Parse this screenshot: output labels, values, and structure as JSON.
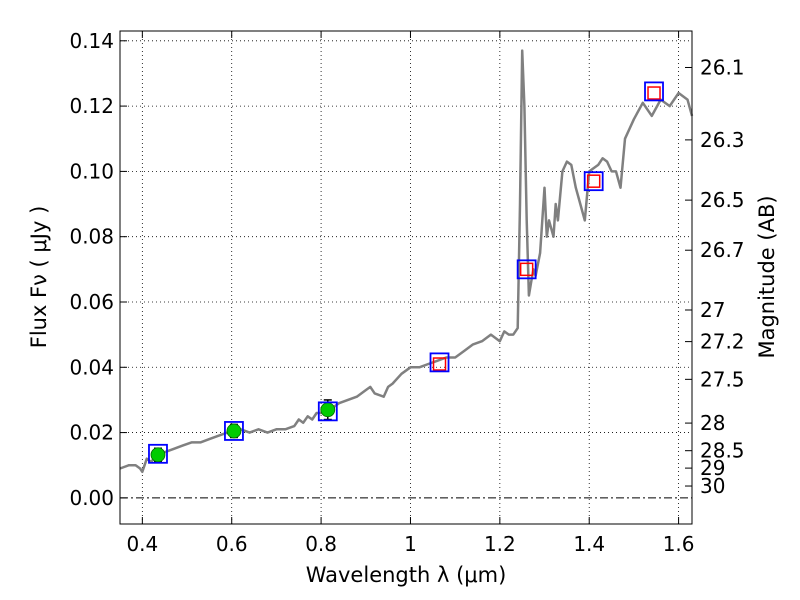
{
  "chart_data": {
    "type": "scatter",
    "xlabel": "Wavelength  λ (μm)",
    "ylabel": "Flux  Fν  ( μJy )",
    "y2label": "Magnitude (AB)",
    "xlim": [
      0.35,
      1.63
    ],
    "ylim": [
      -0.008,
      0.143
    ],
    "grid": true,
    "x_ticks": [
      {
        "value": 0.4,
        "label": "0.4"
      },
      {
        "value": 0.6,
        "label": "0.6"
      },
      {
        "value": 0.8,
        "label": "0.8"
      },
      {
        "value": 1.0,
        "label": "1"
      },
      {
        "value": 1.2,
        "label": "1.2"
      },
      {
        "value": 1.4,
        "label": "1.4"
      },
      {
        "value": 1.6,
        "label": "1.6"
      }
    ],
    "y_ticks": [
      {
        "value": 0.0,
        "label": "0.00"
      },
      {
        "value": 0.02,
        "label": "0.02"
      },
      {
        "value": 0.04,
        "label": "0.04"
      },
      {
        "value": 0.06,
        "label": "0.06"
      },
      {
        "value": 0.08,
        "label": "0.08"
      },
      {
        "value": 0.1,
        "label": "0.10"
      },
      {
        "value": 0.12,
        "label": "0.12"
      },
      {
        "value": 0.14,
        "label": "0.14"
      }
    ],
    "y2_ticks": [
      {
        "value": 26.1,
        "label": "26.1"
      },
      {
        "value": 26.3,
        "label": "26.3"
      },
      {
        "value": 26.5,
        "label": "26.5"
      },
      {
        "value": 26.7,
        "label": "26.7"
      },
      {
        "value": 27.0,
        "label": "27"
      },
      {
        "value": 27.2,
        "label": "27.2"
      },
      {
        "value": 27.5,
        "label": "27.5"
      },
      {
        "value": 28.0,
        "label": "28"
      },
      {
        "value": 28.5,
        "label": "28.5"
      },
      {
        "value": 29.0,
        "label": "29"
      },
      {
        "value": 30.0,
        "label": "30"
      }
    ],
    "model_spectrum": {
      "color": "#808080",
      "x": [
        0.35,
        0.37,
        0.385,
        0.395,
        0.4,
        0.41,
        0.42,
        0.43,
        0.45,
        0.47,
        0.49,
        0.51,
        0.53,
        0.55,
        0.57,
        0.59,
        0.6,
        0.62,
        0.64,
        0.66,
        0.68,
        0.7,
        0.72,
        0.74,
        0.75,
        0.76,
        0.77,
        0.78,
        0.79,
        0.8,
        0.82,
        0.84,
        0.86,
        0.88,
        0.9,
        0.91,
        0.92,
        0.94,
        0.95,
        0.96,
        0.98,
        1.0,
        1.02,
        1.04,
        1.06,
        1.08,
        1.1,
        1.12,
        1.14,
        1.16,
        1.18,
        1.2,
        1.21,
        1.22,
        1.23,
        1.24,
        1.245,
        1.25,
        1.255,
        1.26,
        1.265,
        1.27,
        1.275,
        1.28,
        1.29,
        1.3,
        1.305,
        1.31,
        1.32,
        1.325,
        1.33,
        1.34,
        1.35,
        1.36,
        1.37,
        1.38,
        1.39,
        1.4,
        1.42,
        1.43,
        1.44,
        1.45,
        1.46,
        1.47,
        1.48,
        1.5,
        1.52,
        1.54,
        1.56,
        1.58,
        1.6,
        1.62,
        1.63
      ],
      "y": [
        0.009,
        0.01,
        0.01,
        0.009,
        0.008,
        0.012,
        0.011,
        0.013,
        0.014,
        0.015,
        0.016,
        0.017,
        0.017,
        0.018,
        0.019,
        0.02,
        0.021,
        0.021,
        0.02,
        0.021,
        0.02,
        0.021,
        0.021,
        0.022,
        0.024,
        0.023,
        0.025,
        0.024,
        0.026,
        0.026,
        0.027,
        0.029,
        0.03,
        0.031,
        0.033,
        0.034,
        0.032,
        0.031,
        0.034,
        0.035,
        0.038,
        0.04,
        0.04,
        0.041,
        0.042,
        0.043,
        0.043,
        0.045,
        0.047,
        0.048,
        0.05,
        0.048,
        0.051,
        0.05,
        0.05,
        0.052,
        0.09,
        0.137,
        0.12,
        0.085,
        0.062,
        0.066,
        0.07,
        0.068,
        0.075,
        0.095,
        0.08,
        0.085,
        0.08,
        0.09,
        0.085,
        0.1,
        0.103,
        0.102,
        0.095,
        0.09,
        0.085,
        0.1,
        0.102,
        0.104,
        0.103,
        0.1,
        0.1,
        0.095,
        0.11,
        0.116,
        0.121,
        0.117,
        0.122,
        0.12,
        0.124,
        0.122,
        0.117
      ]
    },
    "observed_points": {
      "marker": "filled-circle",
      "color": "#00cc00",
      "x": [
        0.435,
        0.605,
        0.815
      ],
      "y": [
        0.0132,
        0.0205,
        0.027
      ],
      "yerr": [
        0.002,
        0.002,
        0.003
      ]
    },
    "model_photometry": {
      "marker": "open-square",
      "color": "#0000ff",
      "x": [
        0.435,
        0.605,
        0.815,
        1.065,
        1.26,
        1.41,
        1.545
      ],
      "y": [
        0.0135,
        0.0205,
        0.0265,
        0.0415,
        0.07,
        0.097,
        0.1245
      ]
    },
    "upper_points": {
      "marker": "open-square",
      "color": "#ff0000",
      "x": [
        1.065,
        1.26,
        1.41,
        1.545
      ],
      "y": [
        0.041,
        0.07,
        0.097,
        0.124
      ]
    }
  }
}
